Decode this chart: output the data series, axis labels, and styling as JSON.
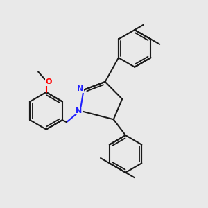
{
  "bg_color": "#e9e9e9",
  "bond_color": "#1a1a1a",
  "N_color": "#2020ff",
  "O_color": "#ff0000",
  "bond_lw": 1.5,
  "dbo": 0.12,
  "figsize": [
    3.0,
    3.0
  ],
  "dpi": 100,
  "xlim": [
    -4.5,
    4.5
  ],
  "ylim": [
    -4.5,
    4.5
  ]
}
